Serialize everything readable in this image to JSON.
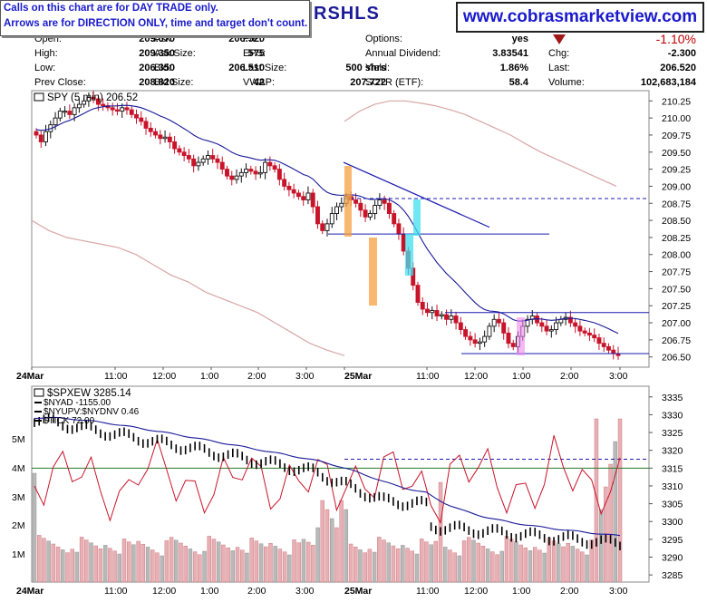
{
  "notice": {
    "line1": "Calls on this chart are for DAY TRADE only.",
    "line2": "Arrows are for DIRECTION ONLY, time and target don't count."
  },
  "symbol": "RSHLS",
  "website": "www.cobrasmarketview.com",
  "header": {
    "col1": [
      {
        "label": "Open:",
        "value": "209.070"
      },
      {
        "label": "High:",
        "value": "209.350"
      },
      {
        "label": "Low:",
        "value": "206.350"
      },
      {
        "label": "Prev Close:",
        "value": "208.820"
      }
    ],
    "col2": [
      {
        "label": "Ask:",
        "value": "206.520"
      },
      {
        "label": "Ask Size:",
        "value": "575"
      },
      {
        "label": "Bid:",
        "value": "206.510"
      },
      {
        "label": "Bid Size:",
        "value": "42"
      }
    ],
    "col3": [
      {
        "label": "P/E:",
        "value": ""
      },
      {
        "label": "EPS:",
        "value": ""
      },
      {
        "label": "Last Size:",
        "value": "500 shrs"
      },
      {
        "label": "VWAP:",
        "value": "207.722"
      }
    ],
    "col4": [
      {
        "label": "Options:",
        "value": "yes"
      },
      {
        "label": "Annual Dividend:",
        "value": "3.83541"
      },
      {
        "label": "Yield:",
        "value": "1.86%"
      },
      {
        "label": "SCTR (ETF):",
        "value": "58.4"
      }
    ],
    "col5": [
      {
        "label": "",
        "value": "-1.10%"
      },
      {
        "label": "Chg:",
        "value": "-2.300"
      },
      {
        "label": "Last:",
        "value": "206.520"
      },
      {
        "label": "Volume:",
        "value": "102,683,184"
      }
    ]
  },
  "colors": {
    "up": "#111111",
    "down": "#c8142a",
    "ma": "#1a1a99",
    "envelope": "#d9a6a6",
    "level": "#1a1ab0",
    "green_line": "#2a7a2a",
    "orange_bar": "#f5a040",
    "cyan_bar": "#40e0f0",
    "pink_bar": "#ee88ee"
  },
  "chart_data": [
    {
      "type": "candlestick",
      "title": "SPY (5 min) 206.52",
      "x_labels": [
        "24Mar",
        "11:00",
        "12:00",
        "1:00",
        "2:00",
        "3:00",
        "25Mar",
        "11:00",
        "12:00",
        "1:00",
        "2:00",
        "3:00"
      ],
      "ylim": [
        206.35,
        210.4
      ],
      "y_ticks": [
        "210.25",
        "210.00",
        "209.75",
        "209.50",
        "209.25",
        "209.00",
        "208.75",
        "208.50",
        "208.25",
        "208.00",
        "207.75",
        "207.50",
        "207.25",
        "207.00",
        "206.75",
        "206.50"
      ],
      "close": [
        209.75,
        209.65,
        209.8,
        209.9,
        210.0,
        210.1,
        210.1,
        210.05,
        210.15,
        210.2,
        210.25,
        210.3,
        210.28,
        210.2,
        210.18,
        210.15,
        210.12,
        210.1,
        210.15,
        210.12,
        210.05,
        210.0,
        209.95,
        209.85,
        209.8,
        209.75,
        209.7,
        209.72,
        209.65,
        209.55,
        209.5,
        209.45,
        209.4,
        209.3,
        209.35,
        209.4,
        209.45,
        209.4,
        209.35,
        209.25,
        209.15,
        209.1,
        209.15,
        209.2,
        209.25,
        209.22,
        209.18,
        209.2,
        209.35,
        209.3,
        209.25,
        209.1,
        209.0,
        208.95,
        208.9,
        208.85,
        208.8,
        208.9,
        208.7,
        208.45,
        208.35,
        208.45,
        208.6,
        208.7,
        208.75,
        208.85,
        208.8,
        208.75,
        208.65,
        208.55,
        208.6,
        208.72,
        208.8,
        208.75,
        208.6,
        208.45,
        208.3,
        208.05,
        207.8,
        207.55,
        207.3,
        207.2,
        207.15,
        207.18,
        207.1,
        207.12,
        207.05,
        207.1,
        207.0,
        206.9,
        206.8,
        206.75,
        206.7,
        206.72,
        206.8,
        206.95,
        207.05,
        207.0,
        206.85,
        206.7,
        206.65,
        206.8,
        206.95,
        207.05,
        207.1,
        207.0,
        206.95,
        206.88,
        206.9,
        207.0,
        207.05,
        207.08,
        207.0,
        206.95,
        206.88,
        206.85,
        206.82,
        206.78,
        206.7,
        206.65,
        206.6,
        206.55,
        206.52
      ],
      "series": [
        {
          "name": "upper envelope",
          "values": [
            209.95,
            210.1,
            210.2,
            210.25,
            210.25,
            210.22,
            210.18,
            210.12,
            210.05,
            209.95,
            209.85,
            209.75,
            209.62,
            209.5,
            209.4,
            209.3,
            209.2,
            209.1,
            209.0
          ]
        },
        {
          "name": "lower envelope",
          "values": [
            208.5,
            208.35,
            208.25,
            208.2,
            208.15,
            208.1,
            208.0,
            207.85,
            207.7,
            207.6,
            207.45,
            207.35,
            207.25,
            207.15,
            207.0,
            206.85,
            206.7,
            206.6,
            206.52
          ]
        }
      ],
      "levels": [
        208.82,
        208.3,
        207.15,
        206.55
      ],
      "trendline": [
        [
          209.35,
          208.4
        ]
      ]
    },
    {
      "type": "line",
      "title": "$SPXEW 3285.14",
      "legend": [
        "$NYAD -1155.00",
        "$NYUPV:$NYDNV 0.46",
        "$TICK 72.00"
      ],
      "y_ticks_right": [
        "3335",
        "3330",
        "3325",
        "3320",
        "3315",
        "3310",
        "3305",
        "3300",
        "3295",
        "3290",
        "3285"
      ],
      "y_ticks_left": [
        "5M",
        "4M",
        "3M",
        "2M",
        "1M"
      ],
      "levels": [
        3317.5,
        3315
      ]
    }
  ]
}
